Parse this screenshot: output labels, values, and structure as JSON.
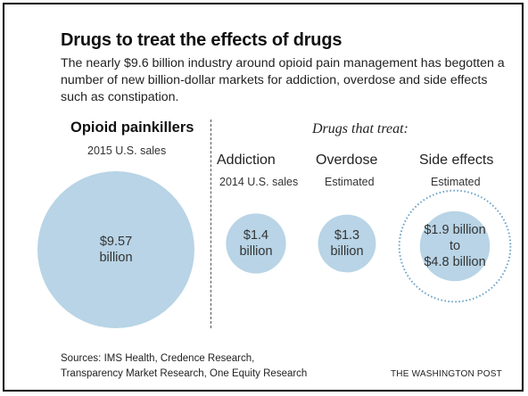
{
  "chart_data": {
    "type": "bubble",
    "title": "Drugs to treat the effects of drugs",
    "subtitle": "The nearly $9.6 billion industry around opioid pain management has begotten a number of new billion-dollar markets for addiction, overdose and side effects such as constipation.",
    "group_headers": {
      "left": "Opioid painkillers",
      "right": "Drugs that treat:"
    },
    "items": [
      {
        "category": "Opioid painkillers",
        "note": "2015 U.S. sales",
        "value_min": 9.57,
        "value_max": 9.57,
        "unit": "billion USD",
        "label": "$9.57\nbillion"
      },
      {
        "category": "Addiction",
        "note": "2014 U.S. sales",
        "value_min": 1.4,
        "value_max": 1.4,
        "unit": "billion USD",
        "label": "$1.4\nbillion"
      },
      {
        "category": "Overdose",
        "note": "Estimated",
        "value_min": 1.3,
        "value_max": 1.3,
        "unit": "billion USD",
        "label": "$1.3\nbillion"
      },
      {
        "category": "Side effects",
        "note": "Estimated",
        "value_min": 1.9,
        "value_max": 4.8,
        "unit": "billion USD",
        "label": "$1.9 billion to\n$4.8 billion"
      }
    ],
    "bubble_color": "#b8d4e6",
    "outline_color": "#6aa2c8"
  },
  "footer": {
    "sources": "Sources: IMS Health, Credence Research,\nTransparency Market Research, One Equity Research",
    "credit": "THE WASHINGTON POST"
  }
}
